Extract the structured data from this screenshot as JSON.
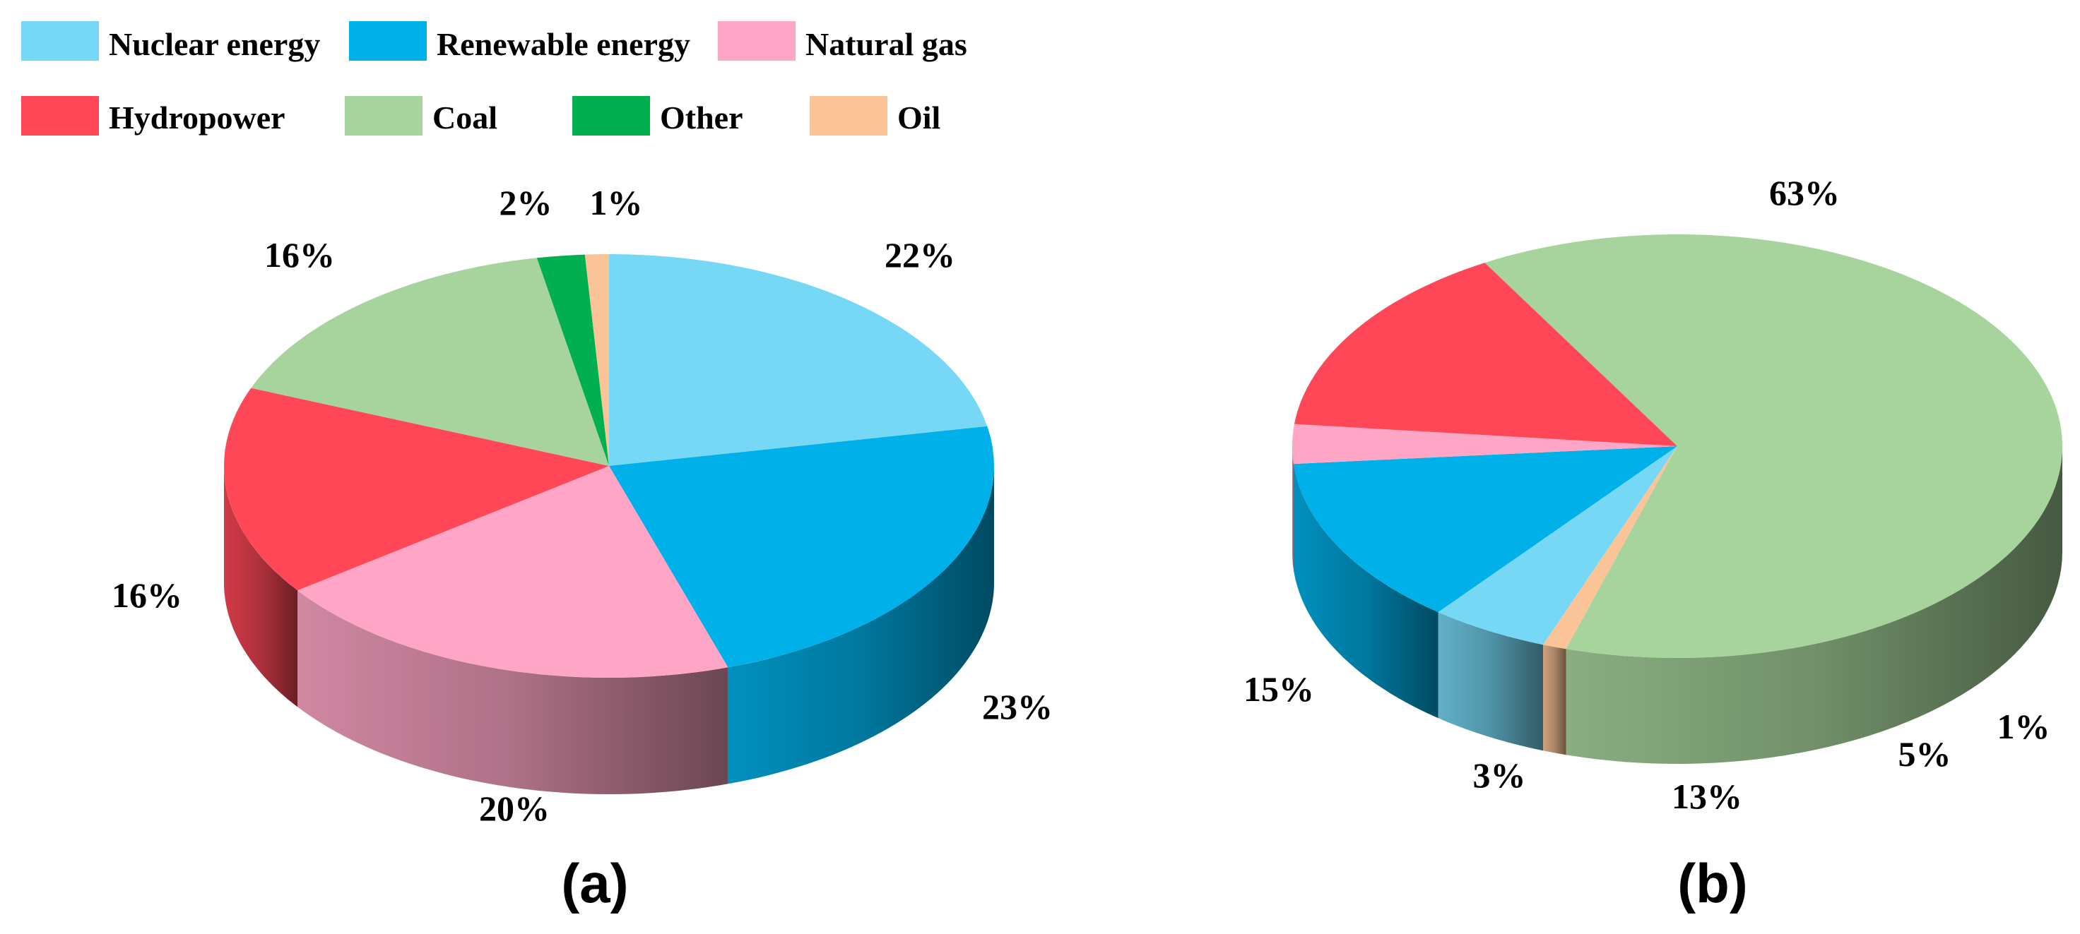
{
  "legend": {
    "items": [
      {
        "key": "nuclear",
        "label": "Nuclear energy",
        "color": "#76D8F5"
      },
      {
        "key": "renewable",
        "label": "Renewable energy",
        "color": "#00B0E8"
      },
      {
        "key": "gas",
        "label": "Natural gas",
        "color": "#FFA6C6"
      },
      {
        "key": "hydro",
        "label": "Hydropower",
        "color": "#FF4757"
      },
      {
        "key": "coal",
        "label": "Coal",
        "color": "#A7D49C"
      },
      {
        "key": "other",
        "label": "Other",
        "color": "#00B050"
      },
      {
        "key": "oil",
        "label": "Oil",
        "color": "#FBC498"
      }
    ]
  },
  "chart_data": [
    {
      "type": "pie",
      "style": "3d",
      "panel_label": "(a)",
      "title": "",
      "slices": [
        {
          "key": "nuclear",
          "value": 22,
          "label": "22%"
        },
        {
          "key": "renewable",
          "value": 23,
          "label": "23%"
        },
        {
          "key": "gas",
          "value": 20,
          "label": "20%"
        },
        {
          "key": "hydro",
          "value": 16,
          "label": "16%"
        },
        {
          "key": "coal",
          "value": 16,
          "label": "16%"
        },
        {
          "key": "other",
          "value": 2,
          "label": "2%"
        },
        {
          "key": "oil",
          "value": 1,
          "label": "1%"
        }
      ]
    },
    {
      "type": "pie",
      "style": "3d",
      "panel_label": "(b)",
      "title": "",
      "slices": [
        {
          "key": "coal",
          "value": 63,
          "label": "63%"
        },
        {
          "key": "oil",
          "value": 1,
          "label": "1%"
        },
        {
          "key": "nuclear",
          "value": 5,
          "label": "5%"
        },
        {
          "key": "renewable",
          "value": 13,
          "label": "13%"
        },
        {
          "key": "gas",
          "value": 3,
          "label": "3%"
        },
        {
          "key": "hydro",
          "value": 15,
          "label": "15%"
        }
      ]
    }
  ]
}
